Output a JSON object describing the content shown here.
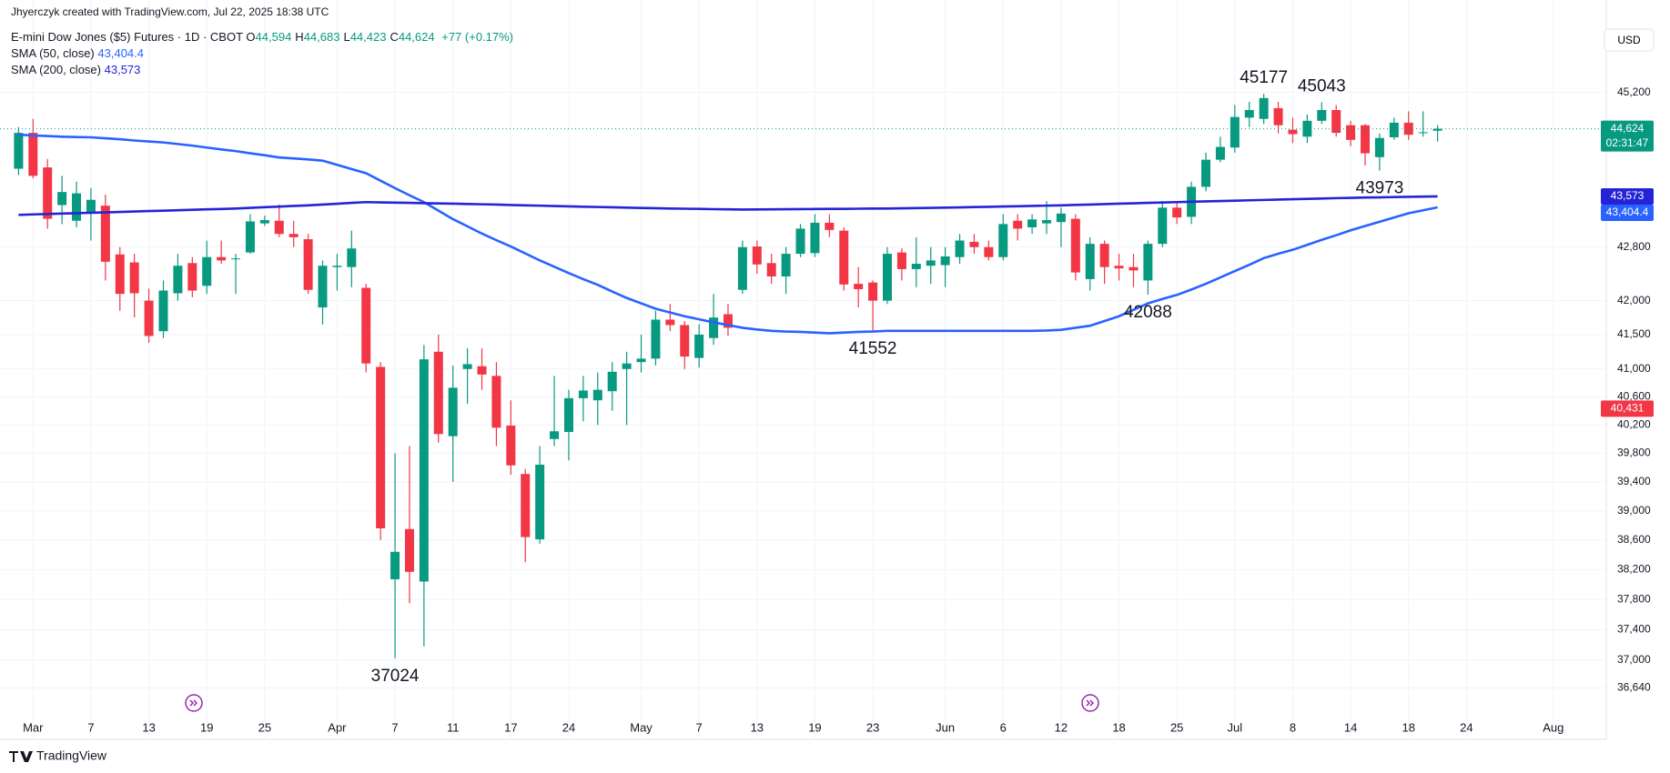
{
  "header": {
    "attribution": "Jhyerczyk created with TradingView.com, Jul 22, 2025 18:38 UTC",
    "symbol": "E-mini Dow Jones ($5) Futures · 1D · CBOT",
    "quote": [
      {
        "label": "O",
        "value": "44,594"
      },
      {
        "label": "H",
        "value": "44,683"
      },
      {
        "label": "L",
        "value": "44,423"
      },
      {
        "label": "C",
        "value": "44,624"
      }
    ],
    "change": "+77 (+0.17%)",
    "currency": "USD"
  },
  "footer": {
    "brand": "TradingView"
  },
  "chart_data": {
    "type": "candlestick",
    "log": true,
    "grid": true,
    "up_color": "#089981",
    "down_color": "#f23645",
    "ylim": [
      36340,
      46265
    ],
    "yticks": [
      {
        "value": 45200,
        "label": "45,200"
      },
      {
        "value": 42800,
        "label": "42,800"
      },
      {
        "value": 42000,
        "label": "42,000"
      },
      {
        "value": 41500,
        "label": "41,500"
      },
      {
        "value": 41000,
        "label": "41,000"
      },
      {
        "value": 40600,
        "label": "40,600"
      },
      {
        "value": 40200,
        "label": "40,200"
      },
      {
        "value": 39800,
        "label": "39,800"
      },
      {
        "value": 39400,
        "label": "39,400"
      },
      {
        "value": 39000,
        "label": "39,000"
      },
      {
        "value": 38600,
        "label": "38,600"
      },
      {
        "value": 38200,
        "label": "38,200"
      },
      {
        "value": 37800,
        "label": "37,800"
      },
      {
        "value": 37400,
        "label": "37,400"
      },
      {
        "value": 37000,
        "label": "37,000"
      },
      {
        "value": 36640,
        "label": "36,640"
      }
    ],
    "xticks": [
      {
        "value": 1,
        "label": "Mar"
      },
      {
        "value": 5,
        "label": "7"
      },
      {
        "value": 9,
        "label": "13"
      },
      {
        "value": 13,
        "label": "19"
      },
      {
        "value": 17,
        "label": "25"
      },
      {
        "value": 22,
        "label": "Apr"
      },
      {
        "value": 26,
        "label": "7"
      },
      {
        "value": 30,
        "label": "11"
      },
      {
        "value": 34,
        "label": "17"
      },
      {
        "value": 38,
        "label": "24"
      },
      {
        "value": 43,
        "label": "May"
      },
      {
        "value": 47,
        "label": "7"
      },
      {
        "value": 51,
        "label": "13"
      },
      {
        "value": 55,
        "label": "19"
      },
      {
        "value": 59,
        "label": "23"
      },
      {
        "value": 64,
        "label": "Jun"
      },
      {
        "value": 68,
        "label": "6"
      },
      {
        "value": 72,
        "label": "12"
      },
      {
        "value": 76,
        "label": "18"
      },
      {
        "value": 80,
        "label": "25"
      },
      {
        "value": 84,
        "label": "Jul"
      },
      {
        "value": 88,
        "label": "8"
      },
      {
        "value": 92,
        "label": "14"
      },
      {
        "value": 96,
        "label": "18"
      },
      {
        "value": 100,
        "label": "24"
      },
      {
        "value": 106,
        "label": "Aug"
      }
    ],
    "ohlc": [
      [
        44000,
        44650,
        43900,
        44560
      ],
      [
        44560,
        44780,
        43850,
        43890
      ],
      [
        44020,
        44150,
        43080,
        43230
      ],
      [
        43440,
        43890,
        43150,
        43640
      ],
      [
        43200,
        43800,
        43100,
        43620
      ],
      [
        43310,
        43700,
        42900,
        43520
      ],
      [
        43430,
        43600,
        42300,
        42580
      ],
      [
        42690,
        42800,
        41850,
        42100
      ],
      [
        42570,
        42700,
        41750,
        42110
      ],
      [
        42000,
        42180,
        41380,
        41480
      ],
      [
        41550,
        42300,
        41450,
        42150
      ],
      [
        42110,
        42700,
        42000,
        42520
      ],
      [
        42560,
        42650,
        42050,
        42150
      ],
      [
        42220,
        42900,
        42100,
        42650
      ],
      [
        42650,
        42900,
        42550,
        42600
      ],
      [
        42620,
        42700,
        42100,
        42630
      ],
      [
        42720,
        43300,
        42700,
        43190
      ],
      [
        43160,
        43280,
        43120,
        43210
      ],
      [
        43200,
        43450,
        42950,
        43000
      ],
      [
        43000,
        43200,
        42800,
        42950
      ],
      [
        42920,
        43000,
        42100,
        42160
      ],
      [
        41900,
        42600,
        41650,
        42520
      ],
      [
        42500,
        42700,
        42150,
        42520
      ],
      [
        42500,
        43050,
        42200,
        42780
      ],
      [
        42190,
        42250,
        40950,
        41080
      ],
      [
        41030,
        41100,
        38600,
        38760
      ],
      [
        38070,
        39800,
        37024,
        38440
      ],
      [
        38750,
        39900,
        37750,
        38170
      ],
      [
        38040,
        41350,
        37180,
        41140
      ],
      [
        41250,
        41500,
        39950,
        40070
      ],
      [
        40040,
        41050,
        39400,
        40730
      ],
      [
        41000,
        41300,
        40500,
        41070
      ],
      [
        41040,
        41300,
        40700,
        40920
      ],
      [
        40900,
        41100,
        39900,
        40160
      ],
      [
        40190,
        40550,
        39500,
        39630
      ],
      [
        39510,
        39580,
        38300,
        38640
      ],
      [
        38610,
        39900,
        38550,
        39640
      ],
      [
        40000,
        40900,
        39900,
        40110
      ],
      [
        40100,
        40700,
        39700,
        40580
      ],
      [
        40580,
        40900,
        40250,
        40690
      ],
      [
        40550,
        40950,
        40200,
        40700
      ],
      [
        40680,
        41100,
        40400,
        40960
      ],
      [
        41000,
        41250,
        40200,
        41080
      ],
      [
        41100,
        41500,
        40950,
        41150
      ],
      [
        41150,
        41850,
        41050,
        41720
      ],
      [
        41720,
        41950,
        41550,
        41640
      ],
      [
        41640,
        41700,
        41000,
        41180
      ],
      [
        41160,
        41650,
        41020,
        41500
      ],
      [
        41450,
        42100,
        41350,
        41750
      ],
      [
        41800,
        41950,
        41480,
        41600
      ],
      [
        42160,
        42900,
        42100,
        42800
      ],
      [
        42810,
        42900,
        42400,
        42540
      ],
      [
        42560,
        42700,
        42250,
        42360
      ],
      [
        42360,
        42800,
        42100,
        42700
      ],
      [
        42700,
        43150,
        42650,
        43080
      ],
      [
        42710,
        43300,
        42650,
        43170
      ],
      [
        43170,
        43300,
        42950,
        43060
      ],
      [
        43050,
        43100,
        42150,
        42240
      ],
      [
        42250,
        42500,
        41900,
        42170
      ],
      [
        42270,
        42300,
        41552,
        42000
      ],
      [
        42000,
        42800,
        41950,
        42700
      ],
      [
        42720,
        42780,
        42300,
        42470
      ],
      [
        42470,
        42950,
        42200,
        42550
      ],
      [
        42520,
        42800,
        42250,
        42600
      ],
      [
        42530,
        42800,
        42200,
        42660
      ],
      [
        42650,
        43000,
        42550,
        42900
      ],
      [
        42880,
        43000,
        42700,
        42800
      ],
      [
        42800,
        42900,
        42600,
        42650
      ],
      [
        42650,
        43300,
        42600,
        43150
      ],
      [
        43200,
        43300,
        42900,
        43080
      ],
      [
        43100,
        43300,
        43000,
        43220
      ],
      [
        43160,
        43500,
        43000,
        43210
      ],
      [
        43180,
        43400,
        42800,
        43310
      ],
      [
        43230,
        43300,
        42300,
        42420
      ],
      [
        42320,
        42950,
        42150,
        42850
      ],
      [
        42850,
        42900,
        42250,
        42500
      ],
      [
        42520,
        42700,
        42300,
        42480
      ],
      [
        42500,
        42700,
        42200,
        42450
      ],
      [
        42300,
        42900,
        42088,
        42850
      ],
      [
        42850,
        43500,
        42800,
        43400
      ],
      [
        43400,
        43500,
        43150,
        43250
      ],
      [
        43260,
        43800,
        43150,
        43720
      ],
      [
        43720,
        44250,
        43650,
        44140
      ],
      [
        44140,
        44500,
        44100,
        44340
      ],
      [
        44330,
        45000,
        44250,
        44810
      ],
      [
        44800,
        45050,
        44650,
        44920
      ],
      [
        44780,
        45177,
        44700,
        45110
      ],
      [
        44950,
        45050,
        44550,
        44680
      ],
      [
        44610,
        44800,
        44400,
        44540
      ],
      [
        44500,
        44850,
        44400,
        44750
      ],
      [
        44750,
        45043,
        44700,
        44920
      ],
      [
        44920,
        45000,
        44500,
        44560
      ],
      [
        44680,
        44750,
        44350,
        44450
      ],
      [
        44680,
        44700,
        44050,
        44240
      ],
      [
        44180,
        44550,
        43973,
        44480
      ],
      [
        44490,
        44800,
        44450,
        44720
      ],
      [
        44720,
        44900,
        44450,
        44530
      ],
      [
        44560,
        44900,
        44500,
        44570
      ],
      [
        44594,
        44683,
        44423,
        44624
      ]
    ],
    "series": [
      {
        "name": "SMA (50, close)",
        "color": "#2962ff",
        "value_label": "43,404.4",
        "values": [
          44530,
          44520,
          44510,
          44500,
          44495,
          44490,
          44475,
          44460,
          44440,
          44425,
          44410,
          44385,
          44360,
          44330,
          44300,
          44275,
          44240,
          44210,
          44175,
          44160,
          44145,
          44125,
          44060,
          43995,
          43930,
          43815,
          43700,
          43590,
          43485,
          43355,
          43225,
          43115,
          43005,
          42905,
          42810,
          42705,
          42600,
          42505,
          42410,
          42320,
          42235,
          42135,
          42040,
          41960,
          41880,
          41825,
          41770,
          41725,
          41680,
          41640,
          41600,
          41575,
          41555,
          41545,
          41540,
          41530,
          41520,
          41530,
          41540,
          41545,
          41555,
          41555,
          41555,
          41555,
          41555,
          41555,
          41555,
          41555,
          41555,
          41555,
          41555,
          41560,
          41570,
          41600,
          41630,
          41700,
          41770,
          41865,
          41960,
          42025,
          42085,
          42165,
          42250,
          42345,
          42440,
          42535,
          42635,
          42700,
          42760,
          42835,
          42910,
          42980,
          43055,
          43120,
          43185,
          43250,
          43315,
          43360,
          43404.4
        ]
      },
      {
        "name": "SMA (200, close)",
        "color": "#2424d6",
        "value_label": "43,573",
        "values": [
          43290,
          43297,
          43303,
          43310,
          43316,
          43322,
          43328,
          43335,
          43341,
          43348,
          43354,
          43361,
          43367,
          43374,
          43380,
          43387,
          43397,
          43407,
          43416,
          43426,
          43436,
          43448,
          43460,
          43473,
          43485,
          43481,
          43477,
          43473,
          43469,
          43465,
          43461,
          43456,
          43452,
          43447,
          43441,
          43436,
          43431,
          43425,
          43420,
          43415,
          43410,
          43406,
          43401,
          43396,
          43392,
          43387,
          43384,
          43381,
          43377,
          43374,
          43371,
          43373,
          43374,
          43376,
          43378,
          43379,
          43381,
          43382,
          43384,
          43386,
          43387,
          43390,
          43394,
          43397,
          43401,
          43404,
          43409,
          43413,
          43418,
          43422,
          43427,
          43431,
          43436,
          43442,
          43448,
          43454,
          43461,
          43467,
          43473,
          43479,
          43485,
          43491,
          43496,
          43502,
          43507,
          43513,
          43518,
          43524,
          43529,
          43535,
          43540,
          43546,
          43551,
          43555,
          43558,
          43562,
          43566,
          43569,
          43573
        ]
      }
    ],
    "annotations": [
      45177,
      45043,
      43973,
      41552,
      42088,
      37024
    ],
    "price_tags": [
      {
        "value": 44624,
        "label": "44,624",
        "sub": "02:31:47",
        "color": "#089981"
      },
      {
        "value": 43573,
        "label": "43,573",
        "color": "#2424d6"
      },
      {
        "value": 43404.4,
        "label": "43,404.4",
        "color": "#2962ff"
      },
      {
        "value": 40431,
        "label": "40,431",
        "color": "#f23645"
      }
    ]
  }
}
